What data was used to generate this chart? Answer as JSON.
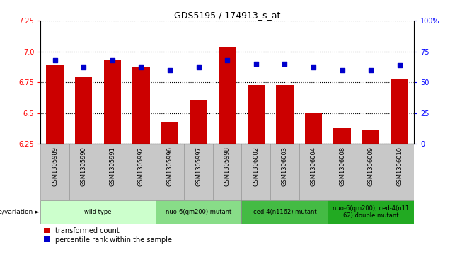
{
  "title": "GDS5195 / 174913_s_at",
  "samples": [
    "GSM1305989",
    "GSM1305990",
    "GSM1305991",
    "GSM1305992",
    "GSM1305996",
    "GSM1305997",
    "GSM1305998",
    "GSM1306002",
    "GSM1306003",
    "GSM1306004",
    "GSM1306008",
    "GSM1306009",
    "GSM1306010"
  ],
  "transformed_count": [
    6.89,
    6.79,
    6.93,
    6.88,
    6.43,
    6.61,
    7.03,
    6.73,
    6.73,
    6.5,
    6.38,
    6.36,
    6.78
  ],
  "percentile_rank": [
    68,
    62,
    68,
    62,
    60,
    62,
    68,
    65,
    65,
    62,
    60,
    60,
    64
  ],
  "ylim_left": [
    6.25,
    7.25
  ],
  "ylim_right": [
    0,
    100
  ],
  "yticks_left": [
    6.25,
    6.5,
    6.75,
    7.0,
    7.25
  ],
  "yticks_right": [
    0,
    25,
    50,
    75,
    100
  ],
  "bar_color": "#cc0000",
  "dot_color": "#0000cc",
  "groups": [
    {
      "label": "wild type",
      "indices": [
        0,
        1,
        2,
        3
      ],
      "color": "#ccffcc"
    },
    {
      "label": "nuo-6(qm200) mutant",
      "indices": [
        4,
        5,
        6
      ],
      "color": "#88dd88"
    },
    {
      "label": "ced-4(n1162) mutant",
      "indices": [
        7,
        8,
        9
      ],
      "color": "#44bb44"
    },
    {
      "label": "nuo-6(qm200); ced-4(n11\n62) double mutant",
      "indices": [
        10,
        11,
        12
      ],
      "color": "#22aa22"
    }
  ],
  "group_header": "genotype/variation",
  "legend_items": [
    "transformed count",
    "percentile rank within the sample"
  ],
  "legend_colors": [
    "#cc0000",
    "#0000cc"
  ],
  "tick_area_bg": "#c8c8c8",
  "tick_area_sep": "#aaaaaa"
}
